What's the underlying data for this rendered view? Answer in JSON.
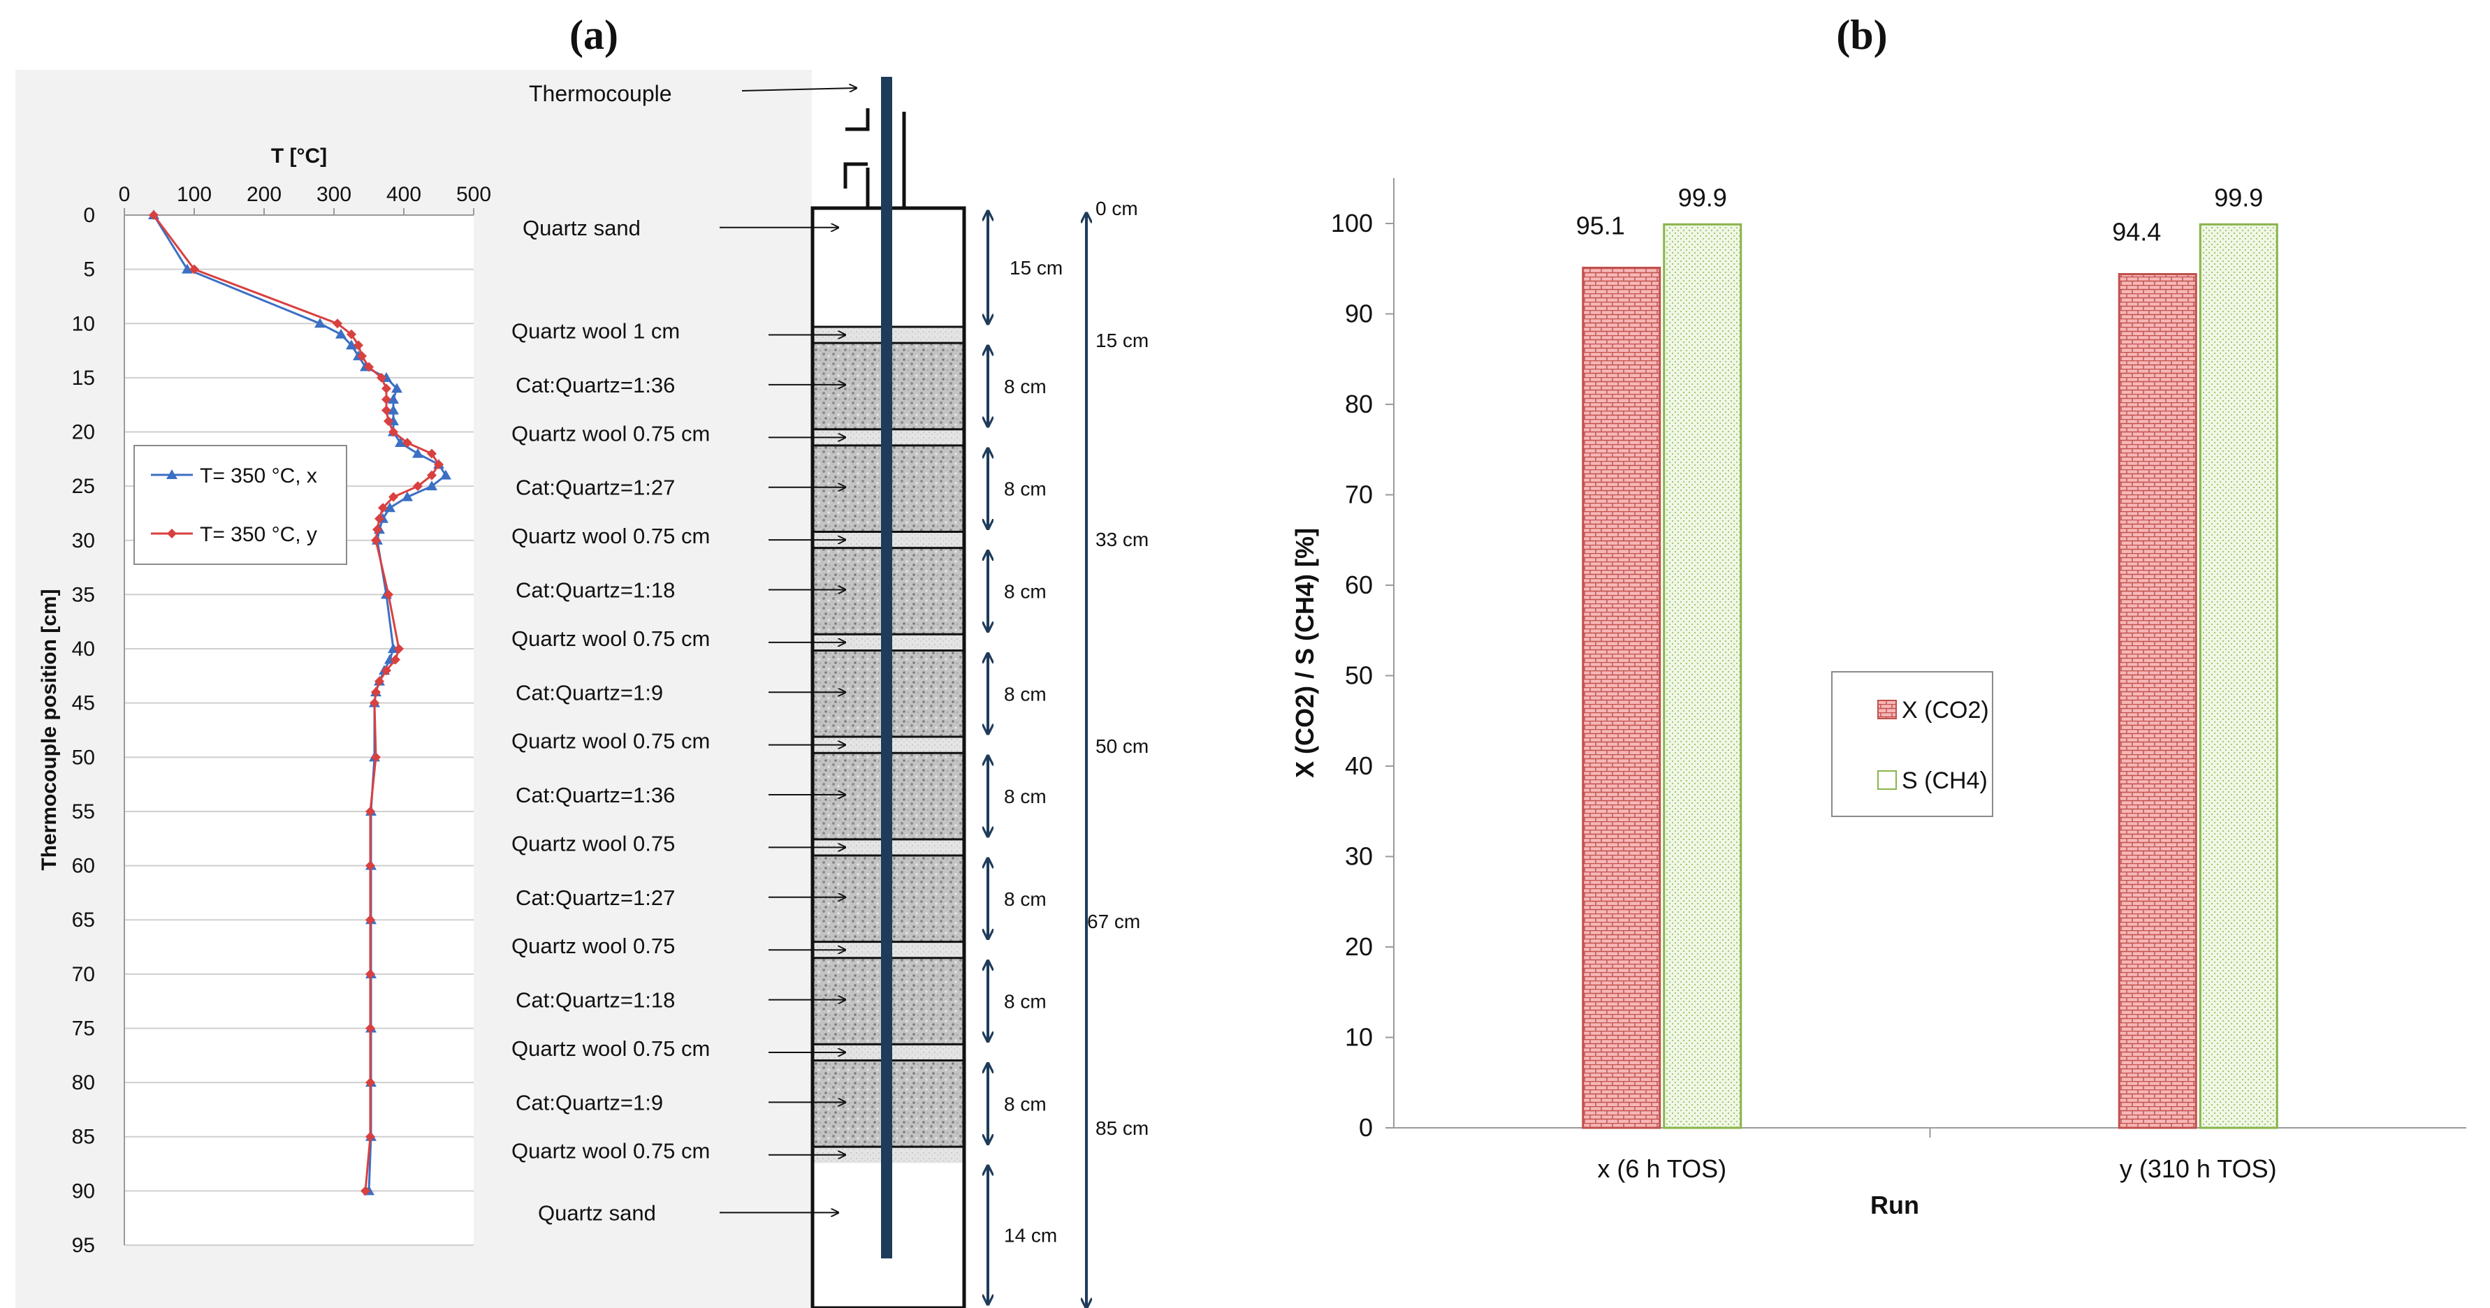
{
  "panel_labels": {
    "a": "(a)",
    "b": "(b)"
  },
  "colors": {
    "series_x_line": "#3b6fc4",
    "series_y_line": "#d94040",
    "bar_x_fill": "#f3a6a6",
    "bar_x_border": "#c0504d",
    "bar_s_fill": "#eaf4dc",
    "bar_s_border": "#8ab44a",
    "reactor_axis": "#1f3b5a",
    "bed_fill": "#b4b4b4",
    "wool_fill": "#dcdcdc"
  },
  "chart_data": [
    {
      "type": "line",
      "xlabel": "T [°C]",
      "ylabel": "Thermocouple position [cm]",
      "xlim": [
        0,
        500
      ],
      "ylim": [
        95,
        0
      ],
      "x_ticks": [
        "0",
        "100",
        "200",
        "300",
        "400",
        "500"
      ],
      "y_ticks": [
        "0",
        "5",
        "10",
        "15",
        "20",
        "25",
        "30",
        "35",
        "40",
        "45",
        "50",
        "55",
        "60",
        "65",
        "70",
        "75",
        "80",
        "85",
        "90",
        "95"
      ],
      "grid": "horizontal",
      "legend_position": "middle-left",
      "series": [
        {
          "name": "T= 350 °C, x",
          "marker": "triangle",
          "points": [
            [
              42,
              0
            ],
            [
              90,
              5
            ],
            [
              280,
              10
            ],
            [
              310,
              11
            ],
            [
              325,
              12
            ],
            [
              335,
              13
            ],
            [
              345,
              14
            ],
            [
              375,
              15
            ],
            [
              390,
              16
            ],
            [
              385,
              17
            ],
            [
              385,
              18
            ],
            [
              385,
              19
            ],
            [
              385,
              20
            ],
            [
              395,
              21
            ],
            [
              420,
              22
            ],
            [
              450,
              23
            ],
            [
              460,
              24
            ],
            [
              440,
              25
            ],
            [
              405,
              26
            ],
            [
              380,
              27
            ],
            [
              370,
              28
            ],
            [
              365,
              29
            ],
            [
              362,
              30
            ],
            [
              375,
              35
            ],
            [
              385,
              40
            ],
            [
              380,
              41
            ],
            [
              372,
              42
            ],
            [
              365,
              43
            ],
            [
              360,
              44
            ],
            [
              358,
              45
            ],
            [
              358,
              50
            ],
            [
              353,
              55
            ],
            [
              353,
              60
            ],
            [
              353,
              65
            ],
            [
              353,
              70
            ],
            [
              353,
              75
            ],
            [
              353,
              80
            ],
            [
              353,
              85
            ],
            [
              350,
              90
            ]
          ]
        },
        {
          "name": "T= 350 °C, y",
          "marker": "diamond",
          "points": [
            [
              42,
              0
            ],
            [
              100,
              5
            ],
            [
              305,
              10
            ],
            [
              325,
              11
            ],
            [
              335,
              12
            ],
            [
              340,
              13
            ],
            [
              350,
              14
            ],
            [
              368,
              15
            ],
            [
              375,
              16
            ],
            [
              375,
              17
            ],
            [
              375,
              18
            ],
            [
              378,
              19
            ],
            [
              385,
              20
            ],
            [
              405,
              21
            ],
            [
              440,
              22
            ],
            [
              450,
              23
            ],
            [
              440,
              24
            ],
            [
              420,
              25
            ],
            [
              385,
              26
            ],
            [
              370,
              27
            ],
            [
              365,
              28
            ],
            [
              362,
              29
            ],
            [
              360,
              30
            ],
            [
              378,
              35
            ],
            [
              393,
              40
            ],
            [
              388,
              41
            ],
            [
              375,
              42
            ],
            [
              365,
              43
            ],
            [
              360,
              44
            ],
            [
              358,
              45
            ],
            [
              360,
              50
            ],
            [
              352,
              55
            ],
            [
              352,
              60
            ],
            [
              352,
              65
            ],
            [
              352,
              70
            ],
            [
              352,
              75
            ],
            [
              352,
              80
            ],
            [
              352,
              85
            ],
            [
              345,
              90
            ]
          ]
        }
      ]
    },
    {
      "type": "bar",
      "xlabel": "Run",
      "ylabel": "X (CO2) / S (CH4) [%]",
      "ylim": [
        0,
        100
      ],
      "y_ticks": [
        "0",
        "10",
        "20",
        "30",
        "40",
        "50",
        "60",
        "70",
        "80",
        "90",
        "100"
      ],
      "categories": [
        "x (6 h TOS)",
        "y (310 h TOS)"
      ],
      "grid": "none",
      "legend_position": "center-right",
      "series": [
        {
          "name": "X (CO2)",
          "values": [
            95.1,
            94.4
          ],
          "labels": [
            "95.1",
            "94.4"
          ]
        },
        {
          "name": "S (CH4)",
          "values": [
            99.9,
            99.9
          ],
          "labels": [
            "99.9",
            "99.9"
          ]
        }
      ]
    }
  ],
  "reactor": {
    "top_label": "Thermocouple",
    "sections": [
      {
        "label": "Quartz sand",
        "kind": "sand",
        "start": 0,
        "end": 11
      },
      {
        "label": "Quartz wool 1 cm",
        "kind": "wool",
        "start": 11,
        "end": 12.5
      },
      {
        "label": "Cat:Quartz=1:36",
        "kind": "bed",
        "start": 12.5,
        "end": 20.5
      },
      {
        "label": "Quartz wool 0.75 cm",
        "kind": "wool",
        "start": 20.5,
        "end": 22
      },
      {
        "label": "Cat:Quartz=1:27",
        "kind": "bed",
        "start": 22,
        "end": 30
      },
      {
        "label": "Quartz wool 0.75 cm",
        "kind": "wool",
        "start": 30,
        "end": 31.5
      },
      {
        "label": "Cat:Quartz=1:18",
        "kind": "bed",
        "start": 31.5,
        "end": 39.5
      },
      {
        "label": "Quartz wool 0.75 cm",
        "kind": "wool",
        "start": 39.5,
        "end": 41
      },
      {
        "label": "Cat:Quartz=1:9",
        "kind": "bed",
        "start": 41,
        "end": 49
      },
      {
        "label": "Quartz wool 0.75 cm",
        "kind": "wool",
        "start": 49,
        "end": 50.5
      },
      {
        "label": "Cat:Quartz=1:36",
        "kind": "bed",
        "start": 50.5,
        "end": 58.5
      },
      {
        "label": "Quartz wool 0.75",
        "kind": "wool",
        "start": 58.5,
        "end": 60
      },
      {
        "label": "Cat:Quartz=1:27",
        "kind": "bed",
        "start": 60,
        "end": 68
      },
      {
        "label": "Quartz wool 0.75",
        "kind": "wool",
        "start": 68,
        "end": 69.5
      },
      {
        "label": "Cat:Quartz=1:18",
        "kind": "bed",
        "start": 69.5,
        "end": 77.5
      },
      {
        "label": "Quartz wool 0.75 cm",
        "kind": "wool",
        "start": 77.5,
        "end": 79
      },
      {
        "label": "Cat:Quartz=1:9",
        "kind": "bed",
        "start": 79,
        "end": 87
      },
      {
        "label": "Quartz wool 0.75 cm",
        "kind": "wool",
        "start": 87,
        "end": 88.5
      },
      {
        "label": "Quartz sand",
        "kind": "sand",
        "start": 88.5,
        "end": 102
      }
    ],
    "section_dims": [
      "15 cm",
      "8 cm",
      "8 cm",
      "8 cm",
      "8 cm",
      "8 cm",
      "8 cm",
      "8 cm",
      "8 cm",
      "14 cm"
    ],
    "total_ticks": [
      "0 cm",
      "15 cm",
      "33 cm",
      "50 cm",
      "67 cm",
      "85 cm"
    ]
  }
}
